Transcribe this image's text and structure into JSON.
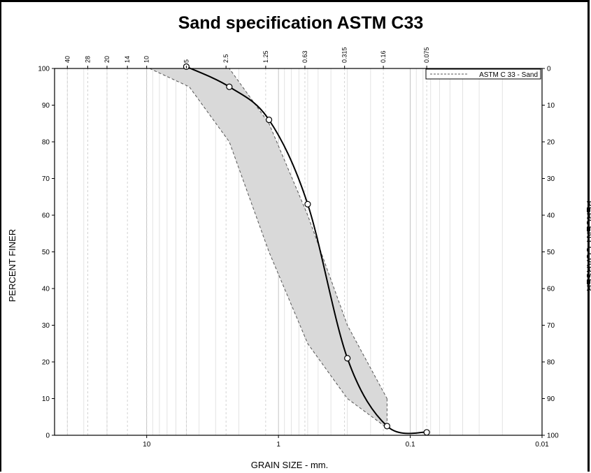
{
  "chart_data": {
    "type": "line",
    "title": "Sand specification ASTM C33",
    "xlabel": "GRAIN SIZE - mm.",
    "ylabel": "PERCENT FINER",
    "ylabel_right": "PERCENT COARSER",
    "x_scale": "log",
    "x_reversed": true,
    "xlim": [
      50,
      0.01
    ],
    "ylim": [
      0,
      100
    ],
    "x_ticks": [
      10,
      1,
      0.1,
      0.01
    ],
    "x_tick_labels": [
      "10",
      "1",
      "0.1",
      "0.01"
    ],
    "y_ticks": [
      0,
      10,
      20,
      30,
      40,
      50,
      60,
      70,
      80,
      90,
      100
    ],
    "y_ticks_right": [
      100,
      90,
      80,
      70,
      60,
      50,
      40,
      30,
      20,
      10,
      0
    ],
    "sieve_sizes": [
      40,
      28,
      20,
      14,
      10,
      5,
      2.5,
      1.25,
      0.63,
      0.315,
      0.16,
      0.075
    ],
    "sieve_labels": [
      "40",
      "28",
      "20",
      "14",
      "10",
      "5",
      "2.5",
      "1.25",
      "0.63",
      "0.315",
      "0.16",
      "0.075"
    ],
    "grid": true,
    "legend": {
      "position": "top-right",
      "entries": [
        "ASTM C 33 - Sand"
      ]
    },
    "band_upper": {
      "x": [
        9.5,
        4.75,
        2.36,
        1.18,
        0.6,
        0.3,
        0.15
      ],
      "y": [
        100,
        100,
        100,
        85,
        60,
        30,
        10
      ]
    },
    "band_lower": {
      "x": [
        9.5,
        4.75,
        2.36,
        1.18,
        0.6,
        0.3,
        0.15
      ],
      "y": [
        100,
        95,
        80,
        50,
        25,
        10,
        2
      ]
    },
    "series": [
      {
        "x": [
          5,
          2.36,
          1.18,
          0.6,
          0.3,
          0.15,
          0.075
        ],
        "y": [
          100.5,
          95,
          86,
          63,
          21,
          2.5,
          0.8
        ]
      }
    ]
  }
}
